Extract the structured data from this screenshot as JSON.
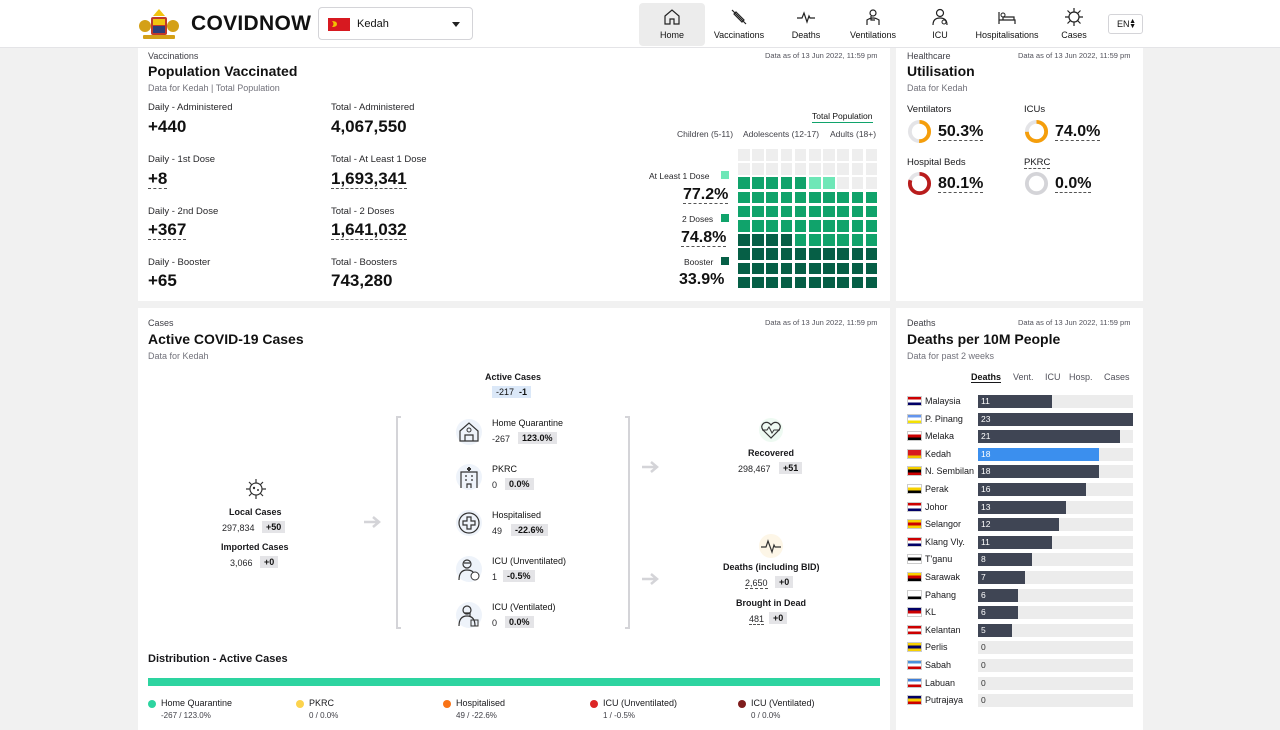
{
  "header": {
    "brand": "COVIDNOW",
    "state": "Kedah",
    "lang": "EN",
    "nav": [
      {
        "label": "Home",
        "icon": "home-icon"
      },
      {
        "label": "Vaccinations",
        "icon": "syringe-icon"
      },
      {
        "label": "Deaths",
        "icon": "pulse-icon"
      },
      {
        "label": "Ventilations",
        "icon": "ventilator-icon"
      },
      {
        "label": "ICU",
        "icon": "doctor-icon"
      },
      {
        "label": "Hospitalisations",
        "icon": "hospital-bed-icon"
      },
      {
        "label": "Cases",
        "icon": "virus-icon"
      }
    ]
  },
  "vaccination": {
    "section": "Vaccinations",
    "title": "Population Vaccinated",
    "subtitle": "Data for Kedah | Total Population",
    "as_of": "Data as of 13 Jun 2022, 11:59 pm",
    "stats": [
      {
        "label": "Daily - Administered",
        "value": "+440"
      },
      {
        "label": "Total - Administered",
        "value": "4,067,550"
      },
      {
        "label": "Daily - 1st Dose",
        "value": "+8"
      },
      {
        "label": "Total - At Least 1 Dose",
        "value": "1,693,341"
      },
      {
        "label": "Daily - 2nd Dose",
        "value": "+367"
      },
      {
        "label": "Total - 2 Doses",
        "value": "1,641,032"
      },
      {
        "label": "Daily - Booster",
        "value": "+65"
      },
      {
        "label": "Total - Boosters",
        "value": "743,280"
      }
    ],
    "filters": {
      "total": "Total Population",
      "children": "Children (5-11)",
      "adolescents": "Adolescents (12-17)",
      "adults": "Adults (18+)"
    },
    "doses": [
      {
        "label": "At Least 1 Dose",
        "value": "77.2%",
        "pct": 77.2,
        "color": "#6ee7b7"
      },
      {
        "label": "2 Doses",
        "value": "74.8%",
        "pct": 74.8,
        "color": "#10a36b"
      },
      {
        "label": "Booster",
        "value": "33.9%",
        "pct": 33.9,
        "color": "#065f46"
      }
    ]
  },
  "utilisation": {
    "section": "Healthcare",
    "title": "Utilisation",
    "subtitle": "Data for Kedah",
    "as_of": "Data as of 13 Jun 2022, 11:59 pm",
    "items": [
      {
        "label": "Ventilators",
        "value": "50.3%",
        "pct": 50.3,
        "color": "#f59e0b"
      },
      {
        "label": "ICUs",
        "value": "74.0%",
        "pct": 74.0,
        "color": "#f59e0b"
      },
      {
        "label": "Hospital Beds",
        "value": "80.1%",
        "pct": 80.1,
        "color": "#b91c1c"
      },
      {
        "label": "PKRC",
        "value": "0.0%",
        "pct": 0.0,
        "color": "#9ca3af"
      }
    ]
  },
  "cases": {
    "section": "Cases",
    "title": "Active COVID-19 Cases",
    "subtitle": "Data for Kedah",
    "as_of": "Data as of 13 Jun 2022, 11:59 pm",
    "active": {
      "label": "Active Cases",
      "value": "-217",
      "change": "-1"
    },
    "local": {
      "label": "Local Cases",
      "value": "297,834",
      "change": "+50"
    },
    "imported": {
      "label": "Imported Cases",
      "value": "3,066",
      "change": "+0"
    },
    "breakdown": [
      {
        "label": "Home Quarantine",
        "value": "-267",
        "change": "123.0%",
        "icon": "house-icon"
      },
      {
        "label": "PKRC",
        "value": "0",
        "change": "0.0%",
        "icon": "building-icon"
      },
      {
        "label": "Hospitalised",
        "value": "49",
        "change": "-22.6%",
        "icon": "medical-cross-icon"
      },
      {
        "label": "ICU (Unventilated)",
        "value": "1",
        "change": "-0.5%",
        "icon": "icu-patient-icon"
      },
      {
        "label": "ICU (Ventilated)",
        "value": "0",
        "change": "0.0%",
        "icon": "ventilated-patient-icon"
      }
    ],
    "recovered": {
      "label": "Recovered",
      "value": "298,467",
      "change": "+51"
    },
    "deaths": {
      "label": "Deaths (including BID)",
      "value": "2,650",
      "change": "+0"
    },
    "bid": {
      "label": "Brought in Dead",
      "value": "481",
      "change": "+0"
    },
    "distribution": {
      "title": "Distribution - Active Cases",
      "items": [
        {
          "label": "Home Quarantine",
          "value": "-267 / 123.0%",
          "color": "#2dd4a0"
        },
        {
          "label": "PKRC",
          "value": "0 / 0.0%",
          "color": "#fcd34d"
        },
        {
          "label": "Hospitalised",
          "value": "49 / -22.6%",
          "color": "#f97316"
        },
        {
          "label": "ICU (Unventilated)",
          "value": "1 / -0.5%",
          "color": "#dc2626"
        },
        {
          "label": "ICU (Ventilated)",
          "value": "0 / 0.0%",
          "color": "#7f1d1d"
        }
      ]
    }
  },
  "deaths_card": {
    "section": "Deaths",
    "title": "Deaths per 10M People",
    "subtitle": "Data for past 2 weeks",
    "as_of": "Data as of 13 Jun 2022, 11:59 pm",
    "tabs": [
      "Deaths",
      "Vent.",
      "ICU",
      "Hosp.",
      "Cases"
    ],
    "chart_data": {
      "type": "bar",
      "categories": [
        "Malaysia",
        "P. Pinang",
        "Melaka",
        "Kedah",
        "N. Sembilan",
        "Perak",
        "Johor",
        "Selangor",
        "Klang Vly.",
        "T'ganu",
        "Sarawak",
        "Pahang",
        "KL",
        "Kelantan",
        "Perlis",
        "Sabah",
        "Labuan",
        "Putrajaya"
      ],
      "values": [
        11,
        23,
        21,
        18,
        18,
        16,
        13,
        12,
        11,
        8,
        7,
        6,
        6,
        5,
        0,
        0,
        0,
        0
      ],
      "labels": [
        "11",
        "23",
        "21",
        "18",
        "18",
        "16",
        "13",
        "12",
        "11",
        "8",
        "7",
        "6",
        "6",
        "5",
        "0",
        "0",
        "0",
        "0"
      ],
      "highlight": "Kedah",
      "xlim": [
        0,
        23
      ]
    }
  }
}
